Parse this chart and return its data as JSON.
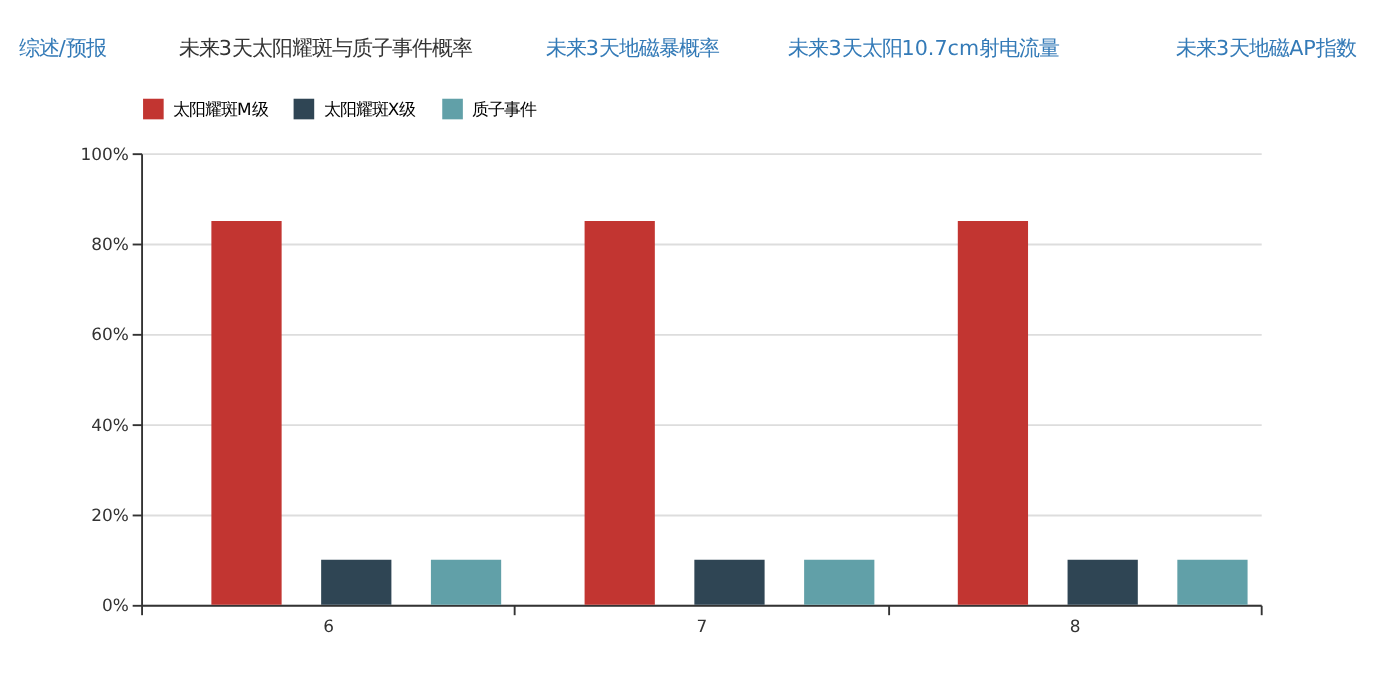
{
  "chart_data": {
    "type": "bar",
    "annotations": [
      "综述/预报",
      "未来3天太阳耀斑与质子事件概率",
      "未来3天地磁暴概率",
      "未来3天太阳10.7cm射电流量",
      "未来3天地磁AP指数"
    ],
    "categories": [
      "6",
      "7",
      "8"
    ],
    "series": [
      {
        "name": "太阳耀斑M级",
        "color": "#c23531",
        "values": [
          85,
          85,
          85
        ]
      },
      {
        "name": "太阳耀斑X级",
        "color": "#2f4554",
        "values": [
          10,
          10,
          10
        ]
      },
      {
        "name": "质子事件",
        "color": "#61a0a8",
        "values": [
          10,
          10,
          10
        ]
      }
    ],
    "ylim": [
      0,
      100
    ],
    "yticks": [
      {
        "value": 0,
        "label": "0%"
      },
      {
        "value": 20,
        "label": "20%"
      },
      {
        "value": 40,
        "label": "40%"
      },
      {
        "value": 60,
        "label": "60%"
      },
      {
        "value": 80,
        "label": "80%"
      },
      {
        "value": 100,
        "label": "100%"
      }
    ],
    "grid": "y",
    "legend": "top"
  }
}
